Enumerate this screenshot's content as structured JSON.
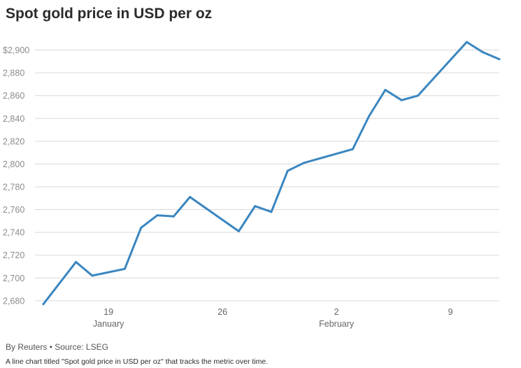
{
  "header": {
    "title": "Spot gold price in USD per oz"
  },
  "footer": {
    "byline": "By Reuters • Source: LSEG",
    "description": "A line chart titled \"Spot gold price in USD per oz\" that tracks the metric over time."
  },
  "colors": {
    "line": "#3a86c0",
    "grid": "#d9d9d9",
    "tick_text": "#8c8c8c"
  },
  "chart_data": {
    "type": "line",
    "title": "Spot gold price in USD per oz",
    "xlabel": "",
    "ylabel": "",
    "x_range": [
      "2025-01-15",
      "2025-02-12"
    ],
    "ylim": [
      2675,
      2912
    ],
    "y_ticks": [
      2680,
      2700,
      2720,
      2740,
      2760,
      2780,
      2800,
      2820,
      2840,
      2860,
      2880,
      2900
    ],
    "y_tick_labels": [
      "2,680",
      "2,700",
      "2,720",
      "2,740",
      "2,760",
      "2,780",
      "2,800",
      "2,820",
      "2,840",
      "2,860",
      "2,880",
      "$2,900"
    ],
    "x_ticks": [
      {
        "date": "2025-01-19",
        "label": "19",
        "sublabel": "January"
      },
      {
        "date": "2025-01-26",
        "label": "26",
        "sublabel": ""
      },
      {
        "date": "2025-02-02",
        "label": "2",
        "sublabel": "February"
      },
      {
        "date": "2025-02-09",
        "label": "9",
        "sublabel": ""
      }
    ],
    "grid": true,
    "series": [
      {
        "x": [
          "2025-01-15",
          "2025-01-17",
          "2025-01-18",
          "2025-01-20",
          "2025-01-21",
          "2025-01-22",
          "2025-01-23",
          "2025-01-24",
          "2025-01-27",
          "2025-01-28",
          "2025-01-29",
          "2025-01-30",
          "2025-01-31",
          "2025-02-03",
          "2025-02-04",
          "2025-02-05",
          "2025-02-06",
          "2025-02-07",
          "2025-02-10",
          "2025-02-11",
          "2025-02-12"
        ],
        "values": [
          2677,
          2714,
          2702,
          2708,
          2744,
          2755,
          2754,
          2771,
          2741,
          2763,
          2758,
          2794,
          2801,
          2813,
          2842,
          2865,
          2856,
          2860,
          2907,
          2898,
          2892
        ]
      }
    ]
  }
}
